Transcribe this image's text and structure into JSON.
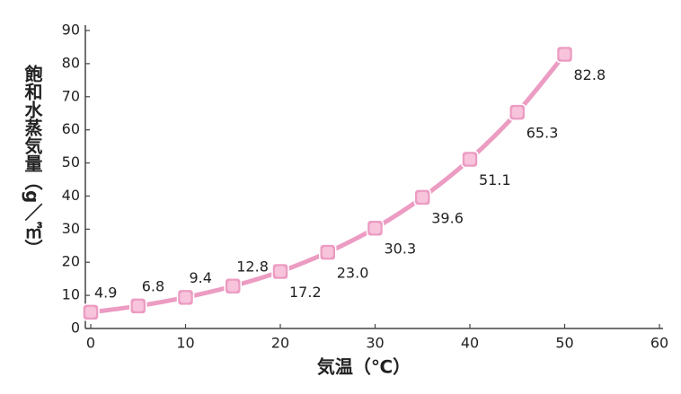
{
  "chart_data": {
    "type": "line",
    "x_label": "気温（℃）",
    "y_label": "飽和水蒸気量（g／㎥）",
    "x": [
      0,
      5,
      10,
      15,
      20,
      25,
      30,
      35,
      40,
      45,
      50
    ],
    "series": [
      {
        "name": "飽和水蒸気量",
        "color": "#ec9cc2",
        "values": [
          4.9,
          6.8,
          9.4,
          12.8,
          17.2,
          23.0,
          30.3,
          39.6,
          51.1,
          65.3,
          82.8
        ],
        "value_labels": [
          "4.9",
          "6.8",
          "9.4",
          "12.8",
          "17.2",
          "23.0",
          "30.3",
          "39.6",
          "51.1",
          "65.3",
          "82.8"
        ]
      }
    ],
    "xlim": [
      0,
      60
    ],
    "xticks": [
      0,
      10,
      20,
      30,
      40,
      50,
      60
    ],
    "ylim": [
      0,
      90
    ],
    "yticks": [
      0,
      10,
      20,
      30,
      40,
      50,
      60,
      70,
      80,
      90
    ]
  }
}
